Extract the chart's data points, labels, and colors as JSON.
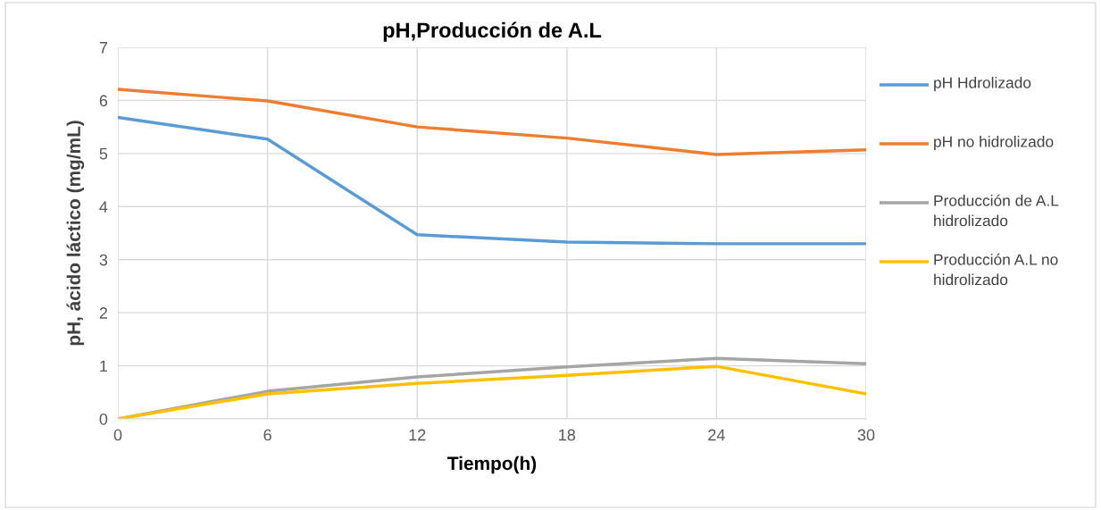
{
  "chart_data": {
    "type": "line",
    "title": "pH,Producción de A.L",
    "xlabel": "Tiempo(h)",
    "ylabel": "pH, ácido láctico (mg/mL)",
    "x": [
      0,
      6,
      12,
      18,
      24,
      30
    ],
    "series": [
      {
        "name": "pH Hdrolizado",
        "color": "#5b9bd5",
        "values": [
          5.68,
          5.27,
          3.47,
          3.33,
          3.3,
          3.3
        ]
      },
      {
        "name": "pH no hidrolizado",
        "color": "#ed7d31",
        "values": [
          6.21,
          5.99,
          5.5,
          5.29,
          4.98,
          5.07
        ]
      },
      {
        "name": "Producción de A.L hidrolizado",
        "color": "#a5a5a5",
        "values": [
          0,
          0.52,
          0.79,
          0.98,
          1.14,
          1.04
        ]
      },
      {
        "name": "Producción A.L no hidrolizado",
        "color": "#ffc000",
        "values": [
          0,
          0.47,
          0.67,
          0.82,
          0.99,
          0.47
        ]
      }
    ],
    "xlim": [
      0,
      30
    ],
    "xticks": [
      0,
      6,
      12,
      18,
      24,
      30
    ],
    "ylim": [
      0,
      7
    ],
    "yticks": [
      0,
      1,
      2,
      3,
      4,
      5,
      6,
      7
    ],
    "grid": true,
    "legend": "right",
    "marker": "none",
    "line_style": "solid"
  }
}
